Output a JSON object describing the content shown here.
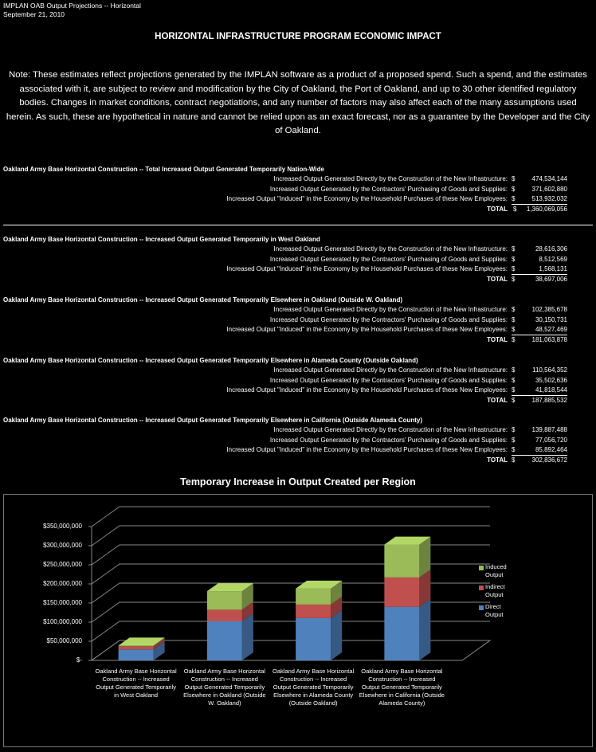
{
  "header": {
    "line1": "IMPLAN OAB Output Projections -- Horizontal",
    "line2": "September 21, 2010"
  },
  "title": "HORIZONTAL INFRASTRUCTURE PROGRAM ECONOMIC IMPACT",
  "note": "Note: These estimates reflect projections generated by the IMPLAN software as a product of a proposed spend.  Such a spend, and the estimates associated with it, are subject to review and modification by the City of Oakland, the Port of Oakland, and up to 30 other identified regulatory bodies.  Changes in market conditions, contract negotiations, and any number of factors may also affect each of the many assumptions used herein. As such, these are hypothetical in nature and cannot be relied upon as an exact forecast, nor as a guarantee by the Developer and the City of Oakland.",
  "sections": [
    {
      "heading": "Oakland Army Base Horizontal Construction -- Total Increased Output Generated Temporarily Nation-Wide",
      "rows": [
        {
          "label": "Increased Output Generated Directly by the Construction of the New Infrastructure:",
          "currency": "$",
          "amount": "474,534,144"
        },
        {
          "label": "Increased Output Generated by the Contractors' Purchasing of Goods and Supplies:",
          "currency": "$",
          "amount": "371,602,880"
        },
        {
          "label": "Increased Output \"Induced\" in the Economy by the Household Purchases of these New Employees:",
          "currency": "$",
          "amount": "513,932,032"
        }
      ],
      "total": {
        "label": "TOTAL",
        "currency": "$",
        "amount": "1,360,069,056"
      }
    },
    {
      "heading": "Oakland Army Base Horizontal Construction -- Increased Output Generated Temporarily in West Oakland",
      "rows": [
        {
          "label": "Increased Output Generated Directly by the Construction of the New Infrastructure:",
          "currency": "$",
          "amount": "28,616,306"
        },
        {
          "label": "Increased Output Generated by the Contractors' Purchasing of Goods and Supplies:",
          "currency": "$",
          "amount": "8,512,569"
        },
        {
          "label": "Increased Output \"Induced\" in the Economy by the Household Purchases of these New Employees:",
          "currency": "$",
          "amount": "1,568,131"
        }
      ],
      "total": {
        "label": "TOTAL",
        "currency": "$",
        "amount": "38,697,006"
      }
    },
    {
      "heading": "Oakland Army Base Horizontal Construction -- Increased Output Generated Temporarily Elsewhere in Oakland (Outside W. Oakland)",
      "rows": [
        {
          "label": "Increased Output Generated Directly by the Construction of the New Infrastructure:",
          "currency": "$",
          "amount": "102,385,678"
        },
        {
          "label": "Increased Output Generated by the Contractors' Purchasing of Goods and Supplies:",
          "currency": "$",
          "amount": "30,150,731"
        },
        {
          "label": "Increased Output \"Induced\" in the Economy by the Household Purchases of these New Employees:",
          "currency": "$",
          "amount": "48,527,469"
        }
      ],
      "total": {
        "label": "TOTAL",
        "currency": "$",
        "amount": "181,063,878"
      }
    },
    {
      "heading": "Oakland Army Base Horizontal Construction -- Increased Output Generated Temporarily Elsewhere in Alameda County (Outside Oakland)",
      "rows": [
        {
          "label": "Increased Output Generated Directly by the Construction of the New Infrastructure:",
          "currency": "$",
          "amount": "110,564,352"
        },
        {
          "label": "Increased Output Generated by the Contractors' Purchasing of Goods and Supplies:",
          "currency": "$",
          "amount": "35,502,636"
        },
        {
          "label": "Increased Output \"Induced\" in the Economy by the Household Purchases of these New Employees:",
          "currency": "$",
          "amount": "41,818,544"
        }
      ],
      "total": {
        "label": "TOTAL",
        "currency": "$",
        "amount": "187,885,532"
      }
    },
    {
      "heading": "Oakland Army Base Horizontal Construction -- Increased Output Generated Temporarily Elsewhere in California (Outside Alameda County)",
      "rows": [
        {
          "label": "Increased Output Generated Directly by the Construction of the New Infrastructure:",
          "currency": "$",
          "amount": "139,887,488"
        },
        {
          "label": "Increased Output Generated by the Contractors' Purchasing of Goods and Supplies:",
          "currency": "$",
          "amount": "77,056,720"
        },
        {
          "label": "Increased Output \"Induced\" in the Economy by the Household Purchases of these New Employees:",
          "currency": "$",
          "amount": "85,892,464"
        }
      ],
      "total": {
        "label": "TOTAL",
        "currency": "$",
        "amount": "302,836,672"
      }
    }
  ],
  "chart_data": {
    "type": "bar",
    "stacked": true,
    "title": "Temporary Increase in Output Created per Region",
    "categories": [
      "Oakland Army Base Horizontal Construction -- Increased Output Generated Temporarily in West Oakland",
      "Oakland Army Base Horizontal Construction -- Increased Output Generated Temporarily Elsewhere in Oakland (Outside W. Oakland)",
      "Oakland Army Base Horizontal Construction -- Increased Output Generated Temporarily Elsewhere in Alameda County (Outside Oakland)",
      "Oakland Army Base Horizontal Construction -- Increased Output Generated Temporarily Elsewhere in California (Outside Alameda County)"
    ],
    "series": [
      {
        "name": "Direct Output",
        "color": "#4f81bd",
        "values": [
          28616306,
          102385678,
          110564352,
          139887488
        ]
      },
      {
        "name": "Indirect Output",
        "color": "#c0504d",
        "values": [
          8512569,
          30150731,
          35502636,
          77056720
        ]
      },
      {
        "name": "Induced Output",
        "color": "#9bbb59",
        "values": [
          1568131,
          48527469,
          41818544,
          85892464
        ]
      }
    ],
    "ylim": [
      0,
      350000000
    ],
    "yticks": [
      {
        "value": 0,
        "label": "$-"
      },
      {
        "value": 50000000,
        "label": "$50,000,000"
      },
      {
        "value": 100000000,
        "label": "$100,000,000"
      },
      {
        "value": 150000000,
        "label": "$150,000,000"
      },
      {
        "value": 200000000,
        "label": "$200,000,000"
      },
      {
        "value": 250000000,
        "label": "$250,000,000"
      },
      {
        "value": 300000000,
        "label": "$300,000,000"
      },
      {
        "value": 350000000,
        "label": "$350,000,000"
      }
    ],
    "grid": true,
    "legend": "right"
  }
}
